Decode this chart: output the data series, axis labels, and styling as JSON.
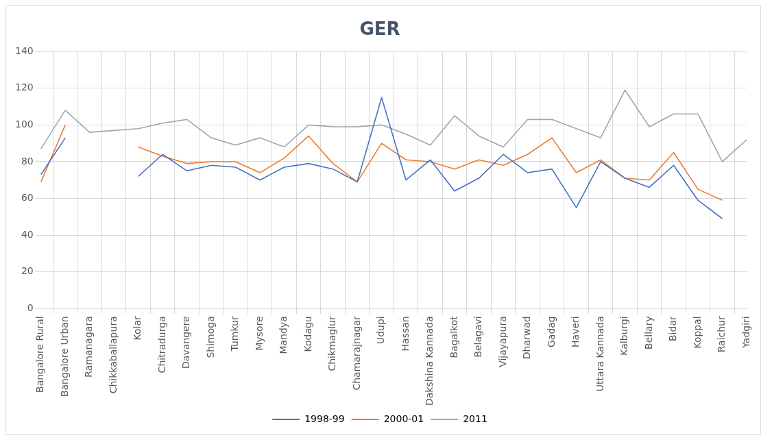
{
  "chart_data": {
    "type": "line",
    "title": "GER",
    "categories": [
      "Bangalore Rural",
      "Bangalore Urban",
      "Ramanagara",
      "Chikkaballapura",
      "Kolar",
      "Chitradurga",
      "Davangere",
      "Shimoga",
      "Tumkur",
      "Mysore",
      "Mandya",
      "Kodagu",
      "Chikmaglur",
      "Chamarajnagar",
      "Udupi",
      "Hassan",
      "Dakshina Kannada",
      "Bagalkot",
      "Belagavi",
      "Vijayapura",
      "Dharwad",
      "Gadag",
      "Haveri",
      "Uttara Kannada",
      "Kalburgi",
      "Bellary",
      "Bidar",
      "Koppal",
      "Raichur",
      "Yadgiri"
    ],
    "series": [
      {
        "name": "1998-99",
        "color": "#4472c4",
        "values": [
          73,
          93,
          null,
          null,
          72,
          84,
          75,
          78,
          77,
          70,
          77,
          79,
          76,
          69,
          115,
          70,
          81,
          64,
          71,
          84,
          74,
          76,
          55,
          80,
          71,
          66,
          78,
          59,
          49,
          null
        ]
      },
      {
        "name": "2000-01",
        "color": "#ed7d31",
        "values": [
          69,
          100,
          null,
          null,
          88,
          83,
          79,
          80,
          80,
          74,
          82,
          94,
          79,
          69,
          90,
          81,
          80,
          76,
          81,
          78,
          84,
          93,
          74,
          81,
          71,
          70,
          85,
          65,
          59,
          null
        ]
      },
      {
        "name": "2011",
        "color": "#a5a5a5",
        "values": [
          87,
          108,
          96,
          97,
          98,
          101,
          103,
          93,
          89,
          93,
          88,
          100,
          99,
          99,
          100,
          95,
          89,
          105,
          94,
          88,
          103,
          103,
          98,
          93,
          119,
          99,
          106,
          106,
          80,
          92
        ]
      }
    ],
    "ylim": [
      0,
      140
    ],
    "yticks": [
      0,
      20,
      40,
      60,
      80,
      100,
      120,
      140
    ],
    "grid": true,
    "legend": "bottom",
    "marker": "none",
    "line_style": "solid"
  }
}
